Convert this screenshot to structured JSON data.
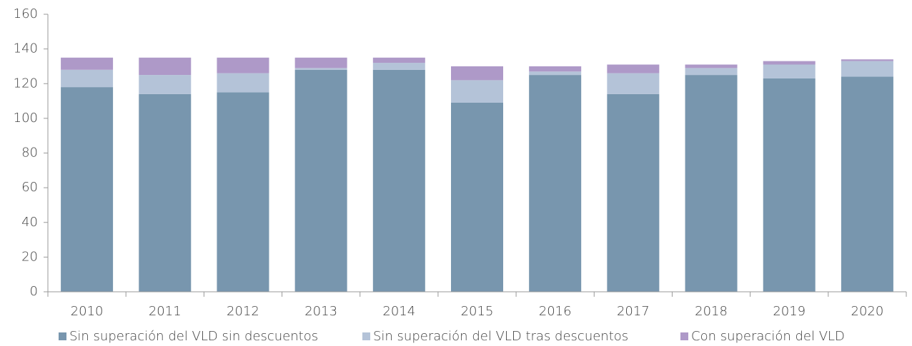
{
  "chart_data": {
    "type": "stacked_bar",
    "categories": [
      "2010",
      "2011",
      "2012",
      "2013",
      "2014",
      "2015",
      "2016",
      "2017",
      "2018",
      "2019",
      "2020"
    ],
    "series": [
      {
        "name": "Sin superación del VLD sin descuentos",
        "color": "#7896ae",
        "values": [
          118,
          114,
          115,
          128,
          128,
          109,
          125,
          114,
          125,
          123,
          124
        ]
      },
      {
        "name": "Sin superación del VLD tras descuentos",
        "color": "#b4c3d8",
        "values": [
          10,
          11,
          11,
          1,
          4,
          13,
          2,
          12,
          4,
          8,
          9
        ]
      },
      {
        "name": "Con superación del VLD",
        "color": "#ae99c8",
        "values": [
          7,
          10,
          9,
          6,
          3,
          8,
          3,
          5,
          2,
          2,
          1
        ]
      }
    ],
    "ylim": [
      0,
      160
    ],
    "yticks": [
      0,
      20,
      40,
      60,
      80,
      100,
      120,
      140,
      160
    ],
    "legend": "bottom"
  }
}
